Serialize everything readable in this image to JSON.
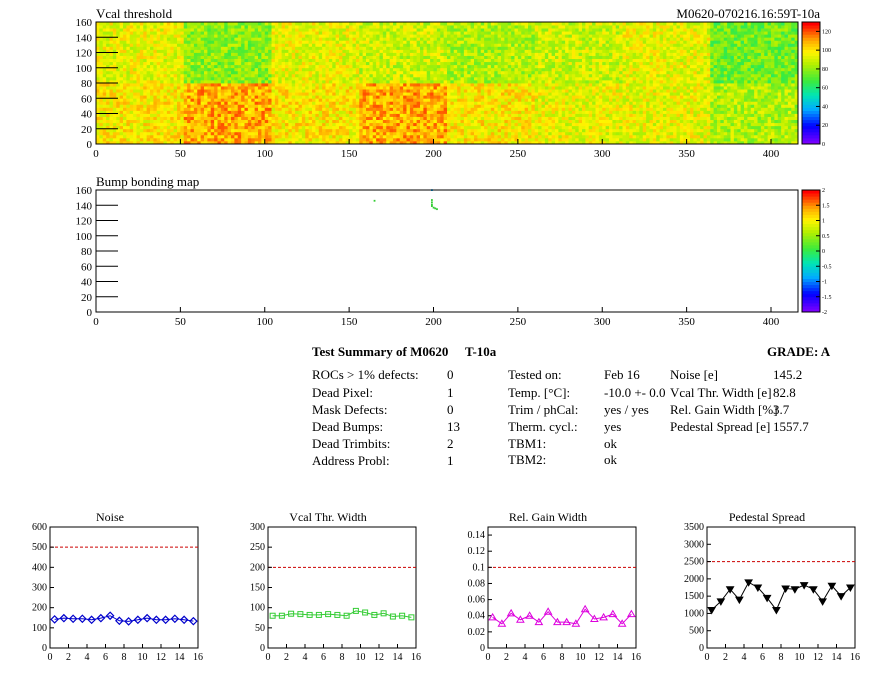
{
  "header": {
    "map1_title": "Vcal threshold",
    "map1_id": "M0620-070216.16:59T-10a",
    "map2_title": "Bump bonding map"
  },
  "summary": {
    "title": "Test Summary of M0620",
    "temp_label": "T-10a",
    "grade": "GRADE:  A",
    "col1": [
      {
        "label": "ROCs > 1% defects:",
        "value": "0"
      },
      {
        "label": "Dead Pixel:",
        "value": "1"
      },
      {
        "label": "Mask Defects:",
        "value": "0"
      },
      {
        "label": "Dead Bumps:",
        "value": "13"
      },
      {
        "label": "Dead Trimbits:",
        "value": "2"
      },
      {
        "label": "Address Probl:",
        "value": "1"
      }
    ],
    "col2": [
      {
        "label": "Tested on:",
        "value": "Feb 16"
      },
      {
        "label": "Temp. [°C]:",
        "value": "-10.0 +- 0.0"
      },
      {
        "label": "Trim / phCal:",
        "value": "yes / yes"
      },
      {
        "label": "Therm. cycl.:",
        "value": "yes"
      },
      {
        "label": "TBM1:",
        "value": "ok"
      },
      {
        "label": "TBM2:",
        "value": "ok"
      }
    ],
    "col3": [
      {
        "label": "Noise [e]",
        "value": "145.2"
      },
      {
        "label": "Vcal Thr. Width [e]",
        "value": "82.8"
      },
      {
        "label": "Rel. Gain Width [%]",
        "value": "3.7"
      },
      {
        "label": "Pedestal Spread [e]",
        "value": "1557.7"
      }
    ]
  },
  "colors": {
    "noise": "#0000cc",
    "vcal": "#33cc33",
    "gain": "#dd00dd",
    "pedestal": "#000000",
    "limit": "#cc0000"
  },
  "chart_data": [
    {
      "type": "heatmap",
      "title": "Vcal threshold",
      "xlim": [
        0,
        416
      ],
      "ylim": [
        0,
        160
      ],
      "xticks": [
        0,
        50,
        100,
        150,
        200,
        250,
        300,
        350,
        400
      ],
      "yticks": [
        0,
        20,
        40,
        60,
        80,
        100,
        120,
        140,
        160
      ],
      "zlim": [
        0,
        130
      ],
      "zticks": [
        0,
        20,
        40,
        60,
        80,
        100,
        120
      ],
      "roc_mean_top": [
        95,
        80,
        95,
        90,
        85,
        90,
        95,
        75
      ],
      "roc_mean_bottom": [
        100,
        110,
        100,
        110,
        100,
        95,
        95,
        85
      ]
    },
    {
      "type": "heatmap",
      "title": "Bump bonding map",
      "xlim": [
        0,
        416
      ],
      "ylim": [
        0,
        160
      ],
      "xticks": [
        0,
        50,
        100,
        150,
        200,
        250,
        300,
        350,
        400
      ],
      "yticks": [
        0,
        20,
        40,
        60,
        80,
        100,
        120,
        140,
        160
      ],
      "zlim": [
        -2,
        2
      ],
      "zticks": [
        -2,
        -1.5,
        -1,
        -0.5,
        0,
        0.5,
        1,
        1.5,
        2
      ],
      "points": [
        [
          165,
          146
        ],
        [
          199,
          160
        ],
        [
          199,
          147
        ],
        [
          199,
          144
        ],
        [
          199,
          141
        ],
        [
          199,
          139
        ],
        [
          200,
          137
        ],
        [
          201,
          136
        ],
        [
          202,
          135
        ]
      ]
    },
    {
      "type": "line",
      "title": "Noise",
      "x": [
        0,
        1,
        2,
        3,
        4,
        5,
        6,
        7,
        8,
        9,
        10,
        11,
        12,
        13,
        14,
        15
      ],
      "values": [
        142,
        148,
        145,
        145,
        140,
        148,
        160,
        135,
        132,
        140,
        148,
        140,
        140,
        145,
        140,
        133
      ],
      "ylim": [
        0,
        600
      ],
      "limit": 500,
      "yticks": [
        0,
        100,
        200,
        300,
        400,
        500,
        600
      ],
      "xticks": [
        0,
        2,
        4,
        6,
        8,
        10,
        12,
        14,
        16
      ]
    },
    {
      "type": "line",
      "title": "Vcal Thr. Width",
      "x": [
        0,
        1,
        2,
        3,
        4,
        5,
        6,
        7,
        8,
        9,
        10,
        11,
        12,
        13,
        14,
        15
      ],
      "values": [
        80,
        80,
        85,
        84,
        82,
        82,
        84,
        82,
        80,
        92,
        88,
        82,
        86,
        78,
        80,
        76
      ],
      "ylim": [
        0,
        300
      ],
      "limit": 200,
      "yticks": [
        0,
        50,
        100,
        150,
        200,
        250,
        300
      ],
      "xticks": [
        0,
        2,
        4,
        6,
        8,
        10,
        12,
        14,
        16
      ]
    },
    {
      "type": "line",
      "title": "Rel. Gain Width",
      "x": [
        0,
        1,
        2,
        3,
        4,
        5,
        6,
        7,
        8,
        9,
        10,
        11,
        12,
        13,
        14,
        15
      ],
      "values": [
        0.038,
        0.03,
        0.043,
        0.035,
        0.04,
        0.032,
        0.045,
        0.032,
        0.032,
        0.03,
        0.048,
        0.036,
        0.038,
        0.042,
        0.03,
        0.042
      ],
      "ylim": [
        0,
        0.15
      ],
      "limit": 0.1,
      "yticks": [
        0,
        0.02,
        0.04,
        0.06,
        0.08,
        0.1,
        0.12,
        0.14
      ],
      "xticks": [
        0,
        2,
        4,
        6,
        8,
        10,
        12,
        14,
        16
      ]
    },
    {
      "type": "line",
      "title": "Pedestal Spread",
      "x": [
        0,
        1,
        2,
        3,
        4,
        5,
        6,
        7,
        8,
        9,
        10,
        11,
        12,
        13,
        14,
        15
      ],
      "values": [
        1100,
        1350,
        1700,
        1400,
        1900,
        1750,
        1450,
        1100,
        1720,
        1700,
        1820,
        1700,
        1350,
        1800,
        1500,
        1750
      ],
      "ylim": [
        0,
        3500
      ],
      "limit": 2500,
      "yticks": [
        0,
        500,
        1000,
        1500,
        2000,
        2500,
        3000,
        3500
      ],
      "xticks": [
        0,
        2,
        4,
        6,
        8,
        10,
        12,
        14,
        16
      ]
    }
  ]
}
